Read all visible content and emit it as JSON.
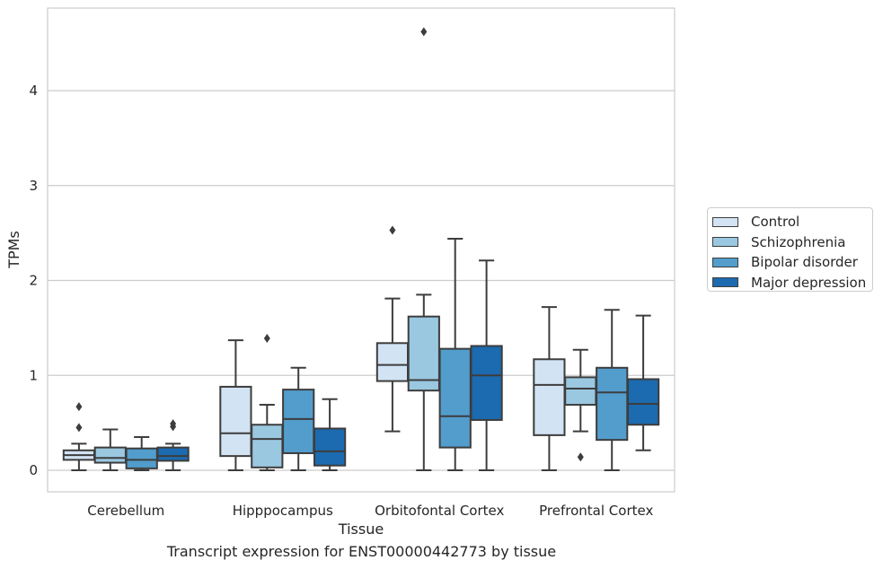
{
  "chart_data": {
    "type": "boxplot",
    "title": "",
    "caption": "Transcript expression for ENST00000442773 by tissue",
    "xlabel": "Tissue",
    "ylabel": "TPMs",
    "ylim": [
      -0.22,
      4.9
    ],
    "yticks": [
      "0",
      "1",
      "2",
      "3",
      "4"
    ],
    "grid": true,
    "legend_position": "right",
    "categories": [
      "Cerebellum",
      "Hipppocampus",
      "Orbitofontal Cortex",
      "Prefrontal Cortex"
    ],
    "series": [
      {
        "name": "Control",
        "color": "#d2e3f3",
        "boxes": [
          {
            "whislo": 0.0,
            "q1": 0.11,
            "med": 0.16,
            "q3": 0.21,
            "whishi": 0.28,
            "fliers": [
              0.45,
              0.67
            ]
          },
          {
            "whislo": 0.0,
            "q1": 0.15,
            "med": 0.39,
            "q3": 0.88,
            "whishi": 1.37,
            "fliers": []
          },
          {
            "whislo": 0.41,
            "q1": 0.94,
            "med": 1.11,
            "q3": 1.34,
            "whishi": 1.81,
            "fliers": [
              2.53
            ]
          },
          {
            "whislo": 0.0,
            "q1": 0.37,
            "med": 0.9,
            "q3": 1.17,
            "whishi": 1.72,
            "fliers": []
          }
        ]
      },
      {
        "name": "Schizophrenia",
        "color": "#9ac8e0",
        "boxes": [
          {
            "whislo": 0.0,
            "q1": 0.08,
            "med": 0.13,
            "q3": 0.24,
            "whishi": 0.43,
            "fliers": []
          },
          {
            "whislo": 0.0,
            "q1": 0.03,
            "med": 0.33,
            "q3": 0.48,
            "whishi": 0.69,
            "fliers": [
              1.39
            ]
          },
          {
            "whislo": 0.0,
            "q1": 0.84,
            "med": 0.95,
            "q3": 1.62,
            "whishi": 1.85,
            "fliers": [
              4.62
            ]
          },
          {
            "whislo": 0.41,
            "q1": 0.69,
            "med": 0.86,
            "q3": 0.98,
            "whishi": 1.27,
            "fliers": [
              0.14
            ]
          }
        ]
      },
      {
        "name": "Bipolar disorder",
        "color": "#529dcc",
        "boxes": [
          {
            "whislo": 0.0,
            "q1": 0.02,
            "med": 0.11,
            "q3": 0.23,
            "whishi": 0.35,
            "fliers": []
          },
          {
            "whislo": 0.0,
            "q1": 0.18,
            "med": 0.54,
            "q3": 0.85,
            "whishi": 1.08,
            "fliers": []
          },
          {
            "whislo": 0.0,
            "q1": 0.24,
            "med": 0.57,
            "q3": 1.28,
            "whishi": 2.44,
            "fliers": []
          },
          {
            "whislo": 0.0,
            "q1": 0.32,
            "med": 0.82,
            "q3": 1.08,
            "whishi": 1.69,
            "fliers": []
          }
        ]
      },
      {
        "name": "Major depression",
        "color": "#1c6aaf",
        "boxes": [
          {
            "whislo": 0.0,
            "q1": 0.1,
            "med": 0.15,
            "q3": 0.24,
            "whishi": 0.28,
            "fliers": [
              0.46,
              0.49
            ]
          },
          {
            "whislo": 0.0,
            "q1": 0.05,
            "med": 0.2,
            "q3": 0.44,
            "whishi": 0.75,
            "fliers": []
          },
          {
            "whislo": 0.0,
            "q1": 0.53,
            "med": 1.0,
            "q3": 1.31,
            "whishi": 2.21,
            "fliers": []
          },
          {
            "whislo": 0.21,
            "q1": 0.48,
            "med": 0.7,
            "q3": 0.96,
            "whishi": 1.63,
            "fliers": []
          }
        ]
      }
    ]
  }
}
